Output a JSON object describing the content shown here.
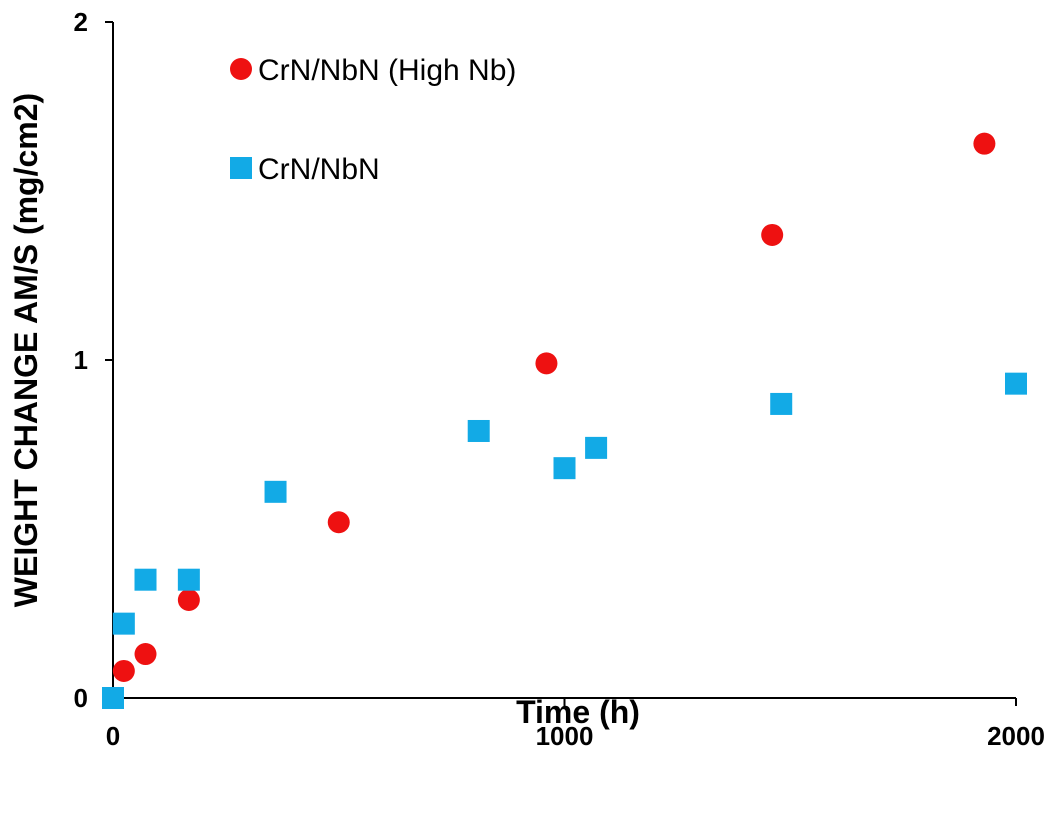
{
  "chart_data": {
    "type": "scatter",
    "title": "",
    "xlabel": "Time (h)",
    "ylabel": "WEIGHT CHANGE AM/S (mg/cm2)",
    "xlim": [
      0,
      2000
    ],
    "ylim": [
      0,
      2
    ],
    "x_ticks": [
      "0",
      "1000",
      "2000"
    ],
    "y_ticks": [
      "0",
      "1",
      "2"
    ],
    "grid": false,
    "legend_position": "top-left",
    "series": [
      {
        "name": "CrN/NbN (High Nb)",
        "marker": "circle",
        "color": "#ee1111",
        "x": [
          24,
          72,
          168,
          500,
          960,
          1460,
          1930
        ],
        "y": [
          0.08,
          0.13,
          0.29,
          0.52,
          0.99,
          1.37,
          1.64
        ]
      },
      {
        "name": "CrN/NbN",
        "marker": "square",
        "color": "#12aae6",
        "x": [
          0,
          24,
          72,
          168,
          360,
          810,
          1000,
          1070,
          1480,
          2000
        ],
        "y": [
          0.0,
          0.22,
          0.35,
          0.35,
          0.61,
          0.79,
          0.68,
          0.74,
          0.87,
          0.93
        ]
      }
    ]
  }
}
